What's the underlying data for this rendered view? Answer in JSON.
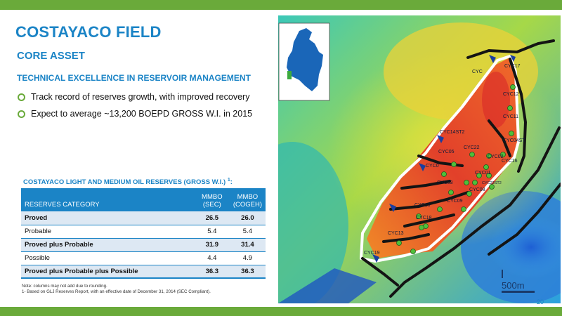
{
  "slide": {
    "title": "COSTAYACO FIELD",
    "subtitle": "CORE ASSET",
    "section_heading": "TECHNICAL EXCELLENCE IN RESERVOIR MANAGEMENT",
    "bullets": [
      "Track record of reserves growth, with improved recovery",
      "Expect to average ~13,200 BOEPD GROSS W.I. in 2015"
    ],
    "page_number": "20"
  },
  "reserves_table": {
    "title": "COSTAYACO LIGHT AND MEDIUM OIL RESERVES (GROSS W.I.)",
    "title_footnote": "1",
    "title_suffix": ":",
    "headers": {
      "category": "RESERVES CATEGORY",
      "sec_line1": "MMBO",
      "sec_line2": "(SEC)",
      "cogeh_line1": "MMBO",
      "cogeh_line2": "(COGEH)"
    },
    "rows": [
      {
        "category": "Proved",
        "sec": "26.5",
        "cogeh": "26.0"
      },
      {
        "category": "Probable",
        "sec": "5.4",
        "cogeh": "5.4"
      },
      {
        "category": "Proved plus Probable",
        "sec": "31.9",
        "cogeh": "31.4"
      },
      {
        "category": "Possible",
        "sec": "4.4",
        "cogeh": "4.9"
      },
      {
        "category": "Proved plus Probable plus Possible",
        "sec": "36.3",
        "cogeh": "36.3"
      }
    ]
  },
  "notes": {
    "line1": "Note: columns may not add due to rounding.",
    "line2": "1- Based on GLJ Reserves Report, with an effective date of December 31, 2014 (SEC Compliant)."
  },
  "map": {
    "scale_label": "500m",
    "wells": [
      {
        "label": "CYC17"
      },
      {
        "label": "CYC"
      },
      {
        "label": "CYC12"
      },
      {
        "label": "CYC11"
      },
      {
        "label": "CYC14ST2"
      },
      {
        "label": "CYC04ST"
      },
      {
        "label": "CYC05"
      },
      {
        "label": "CYC22"
      },
      {
        "label": "CYC02"
      },
      {
        "label": "CYC16"
      },
      {
        "label": "CYC0"
      },
      {
        "label": "CYC01"
      },
      {
        "label": "CYC03"
      },
      {
        "label": "CYC23ST2"
      },
      {
        "label": "CYC08"
      },
      {
        "label": "CYC09"
      },
      {
        "label": "CYC10"
      },
      {
        "label": "CYC18"
      },
      {
        "label": "CYC13"
      },
      {
        "label": "CYC19"
      }
    ],
    "colors": {
      "country_fill": "#1a66b8",
      "location_marker": "#3daa3d",
      "well_dot": "#4fbf3a",
      "outline": "#ffffff",
      "fault": "#141414"
    }
  },
  "theme": {
    "accent_blue": "#1b84c6",
    "accent_green": "#6aaa3a"
  }
}
